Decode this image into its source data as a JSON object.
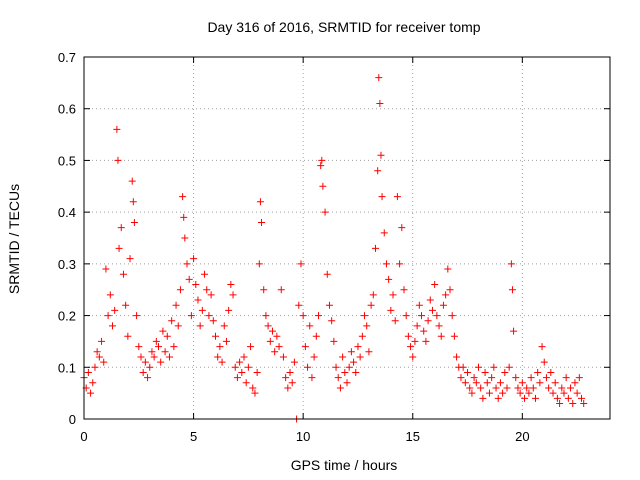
{
  "chart_data": {
    "type": "scatter",
    "title": "Day 316 of 2016, SRMTID for receiver tomp",
    "xlabel": "GPS time / hours",
    "ylabel": "SRMTID / TECUs",
    "xlim": [
      0,
      24
    ],
    "ylim": [
      0,
      0.7
    ],
    "xticks": [
      0,
      5,
      10,
      15,
      20
    ],
    "yticks": [
      0,
      0.1,
      0.2,
      0.3,
      0.4,
      0.5,
      0.6,
      0.7
    ],
    "xtick_labels": [
      "0",
      "5",
      "10",
      "15",
      "20"
    ],
    "ytick_labels": [
      "0",
      "0.1",
      "0.2",
      "0.3",
      "0.4",
      "0.5",
      "0.6",
      "0.7"
    ],
    "grid": true,
    "marker": "+",
    "marker_color": "#ff0000",
    "series": [
      {
        "name": "SRMTID",
        "points": [
          [
            0.0,
            0.08
          ],
          [
            0.1,
            0.06
          ],
          [
            0.2,
            0.09
          ],
          [
            0.3,
            0.05
          ],
          [
            0.4,
            0.07
          ],
          [
            0.5,
            0.1
          ],
          [
            0.6,
            0.13
          ],
          [
            0.7,
            0.12
          ],
          [
            0.8,
            0.15
          ],
          [
            0.9,
            0.11
          ],
          [
            1.0,
            0.29
          ],
          [
            1.1,
            0.2
          ],
          [
            1.2,
            0.24
          ],
          [
            1.3,
            0.18
          ],
          [
            1.4,
            0.21
          ],
          [
            1.5,
            0.56
          ],
          [
            1.55,
            0.5
          ],
          [
            1.6,
            0.33
          ],
          [
            1.7,
            0.37
          ],
          [
            1.8,
            0.28
          ],
          [
            1.9,
            0.22
          ],
          [
            2.0,
            0.16
          ],
          [
            2.1,
            0.31
          ],
          [
            2.2,
            0.46
          ],
          [
            2.25,
            0.42
          ],
          [
            2.3,
            0.38
          ],
          [
            2.4,
            0.2
          ],
          [
            2.5,
            0.14
          ],
          [
            2.6,
            0.12
          ],
          [
            2.7,
            0.09
          ],
          [
            2.8,
            0.11
          ],
          [
            2.9,
            0.08
          ],
          [
            3.0,
            0.1
          ],
          [
            3.1,
            0.13
          ],
          [
            3.2,
            0.12
          ],
          [
            3.3,
            0.15
          ],
          [
            3.4,
            0.14
          ],
          [
            3.5,
            0.11
          ],
          [
            3.6,
            0.17
          ],
          [
            3.7,
            0.13
          ],
          [
            3.8,
            0.16
          ],
          [
            3.9,
            0.12
          ],
          [
            4.0,
            0.19
          ],
          [
            4.1,
            0.14
          ],
          [
            4.2,
            0.22
          ],
          [
            4.3,
            0.18
          ],
          [
            4.4,
            0.25
          ],
          [
            4.5,
            0.43
          ],
          [
            4.55,
            0.39
          ],
          [
            4.6,
            0.35
          ],
          [
            4.7,
            0.3
          ],
          [
            4.8,
            0.27
          ],
          [
            4.9,
            0.2
          ],
          [
            5.0,
            0.31
          ],
          [
            5.1,
            0.26
          ],
          [
            5.2,
            0.23
          ],
          [
            5.3,
            0.18
          ],
          [
            5.4,
            0.21
          ],
          [
            5.5,
            0.28
          ],
          [
            5.6,
            0.25
          ],
          [
            5.7,
            0.2
          ],
          [
            5.8,
            0.24
          ],
          [
            5.9,
            0.19
          ],
          [
            6.0,
            0.16
          ],
          [
            6.1,
            0.12
          ],
          [
            6.2,
            0.14
          ],
          [
            6.3,
            0.11
          ],
          [
            6.4,
            0.18
          ],
          [
            6.5,
            0.15
          ],
          [
            6.6,
            0.21
          ],
          [
            6.7,
            0.26
          ],
          [
            6.8,
            0.24
          ],
          [
            6.9,
            0.1
          ],
          [
            7.0,
            0.08
          ],
          [
            7.1,
            0.11
          ],
          [
            7.2,
            0.09
          ],
          [
            7.3,
            0.12
          ],
          [
            7.4,
            0.07
          ],
          [
            7.5,
            0.1
          ],
          [
            7.6,
            0.14
          ],
          [
            7.7,
            0.06
          ],
          [
            7.8,
            0.05
          ],
          [
            7.9,
            0.09
          ],
          [
            8.0,
            0.3
          ],
          [
            8.05,
            0.42
          ],
          [
            8.1,
            0.38
          ],
          [
            8.2,
            0.25
          ],
          [
            8.3,
            0.2
          ],
          [
            8.4,
            0.18
          ],
          [
            8.5,
            0.15
          ],
          [
            8.6,
            0.17
          ],
          [
            8.7,
            0.13
          ],
          [
            8.8,
            0.16
          ],
          [
            8.9,
            0.14
          ],
          [
            9.0,
            0.25
          ],
          [
            9.1,
            0.12
          ],
          [
            9.2,
            0.08
          ],
          [
            9.3,
            0.06
          ],
          [
            9.4,
            0.09
          ],
          [
            9.5,
            0.07
          ],
          [
            9.6,
            0.11
          ],
          [
            9.7,
            0.0
          ],
          [
            9.8,
            0.22
          ],
          [
            9.9,
            0.3
          ],
          [
            10.0,
            0.2
          ],
          [
            10.1,
            0.14
          ],
          [
            10.2,
            0.1
          ],
          [
            10.3,
            0.18
          ],
          [
            10.4,
            0.08
          ],
          [
            10.5,
            0.12
          ],
          [
            10.6,
            0.16
          ],
          [
            10.7,
            0.2
          ],
          [
            10.8,
            0.49
          ],
          [
            10.85,
            0.5
          ],
          [
            10.9,
            0.45
          ],
          [
            11.0,
            0.4
          ],
          [
            11.1,
            0.28
          ],
          [
            11.2,
            0.22
          ],
          [
            11.3,
            0.19
          ],
          [
            11.4,
            0.15
          ],
          [
            11.5,
            0.1
          ],
          [
            11.6,
            0.08
          ],
          [
            11.7,
            0.06
          ],
          [
            11.8,
            0.12
          ],
          [
            11.9,
            0.09
          ],
          [
            12.0,
            0.07
          ],
          [
            12.1,
            0.1
          ],
          [
            12.2,
            0.13
          ],
          [
            12.3,
            0.11
          ],
          [
            12.4,
            0.09
          ],
          [
            12.5,
            0.14
          ],
          [
            12.6,
            0.12
          ],
          [
            12.7,
            0.16
          ],
          [
            12.8,
            0.2
          ],
          [
            12.9,
            0.18
          ],
          [
            13.0,
            0.13
          ],
          [
            13.1,
            0.22
          ],
          [
            13.2,
            0.24
          ],
          [
            13.3,
            0.33
          ],
          [
            13.4,
            0.48
          ],
          [
            13.45,
            0.66
          ],
          [
            13.5,
            0.61
          ],
          [
            13.55,
            0.51
          ],
          [
            13.6,
            0.43
          ],
          [
            13.7,
            0.36
          ],
          [
            13.8,
            0.3
          ],
          [
            13.9,
            0.27
          ],
          [
            14.0,
            0.21
          ],
          [
            14.1,
            0.24
          ],
          [
            14.2,
            0.19
          ],
          [
            14.3,
            0.43
          ],
          [
            14.4,
            0.3
          ],
          [
            14.5,
            0.37
          ],
          [
            14.6,
            0.25
          ],
          [
            14.7,
            0.2
          ],
          [
            14.8,
            0.16
          ],
          [
            14.9,
            0.14
          ],
          [
            15.0,
            0.12
          ],
          [
            15.1,
            0.15
          ],
          [
            15.2,
            0.18
          ],
          [
            15.3,
            0.22
          ],
          [
            15.4,
            0.2
          ],
          [
            15.5,
            0.17
          ],
          [
            15.6,
            0.15
          ],
          [
            15.7,
            0.19
          ],
          [
            15.8,
            0.23
          ],
          [
            15.9,
            0.21
          ],
          [
            16.0,
            0.26
          ],
          [
            16.1,
            0.2
          ],
          [
            16.2,
            0.18
          ],
          [
            16.3,
            0.16
          ],
          [
            16.4,
            0.22
          ],
          [
            16.5,
            0.24
          ],
          [
            16.6,
            0.29
          ],
          [
            16.7,
            0.25
          ],
          [
            16.8,
            0.2
          ],
          [
            16.9,
            0.16
          ],
          [
            17.0,
            0.12
          ],
          [
            17.1,
            0.1
          ],
          [
            17.2,
            0.08
          ],
          [
            17.3,
            0.1
          ],
          [
            17.4,
            0.07
          ],
          [
            17.5,
            0.09
          ],
          [
            17.6,
            0.06
          ],
          [
            17.7,
            0.05
          ],
          [
            17.8,
            0.08
          ],
          [
            17.9,
            0.07
          ],
          [
            18.0,
            0.1
          ],
          [
            18.1,
            0.06
          ],
          [
            18.2,
            0.04
          ],
          [
            18.3,
            0.09
          ],
          [
            18.4,
            0.07
          ],
          [
            18.5,
            0.05
          ],
          [
            18.6,
            0.08
          ],
          [
            18.7,
            0.1
          ],
          [
            18.8,
            0.06
          ],
          [
            18.9,
            0.04
          ],
          [
            19.0,
            0.07
          ],
          [
            19.1,
            0.05
          ],
          [
            19.2,
            0.09
          ],
          [
            19.3,
            0.06
          ],
          [
            19.4,
            0.1
          ],
          [
            19.5,
            0.3
          ],
          [
            19.55,
            0.25
          ],
          [
            19.6,
            0.17
          ],
          [
            19.7,
            0.08
          ],
          [
            19.8,
            0.06
          ],
          [
            19.9,
            0.05
          ],
          [
            20.0,
            0.07
          ],
          [
            20.1,
            0.04
          ],
          [
            20.2,
            0.06
          ],
          [
            20.3,
            0.05
          ],
          [
            20.4,
            0.08
          ],
          [
            20.5,
            0.06
          ],
          [
            20.6,
            0.04
          ],
          [
            20.7,
            0.09
          ],
          [
            20.8,
            0.07
          ],
          [
            20.9,
            0.14
          ],
          [
            21.0,
            0.11
          ],
          [
            21.1,
            0.08
          ],
          [
            21.2,
            0.06
          ],
          [
            21.3,
            0.09
          ],
          [
            21.4,
            0.05
          ],
          [
            21.5,
            0.07
          ],
          [
            21.6,
            0.04
          ],
          [
            21.7,
            0.03
          ],
          [
            21.8,
            0.06
          ],
          [
            21.9,
            0.05
          ],
          [
            22.0,
            0.08
          ],
          [
            22.1,
            0.04
          ],
          [
            22.2,
            0.06
          ],
          [
            22.3,
            0.03
          ],
          [
            22.4,
            0.07
          ],
          [
            22.5,
            0.05
          ],
          [
            22.6,
            0.08
          ],
          [
            22.7,
            0.04
          ],
          [
            22.8,
            0.03
          ]
        ]
      }
    ]
  }
}
